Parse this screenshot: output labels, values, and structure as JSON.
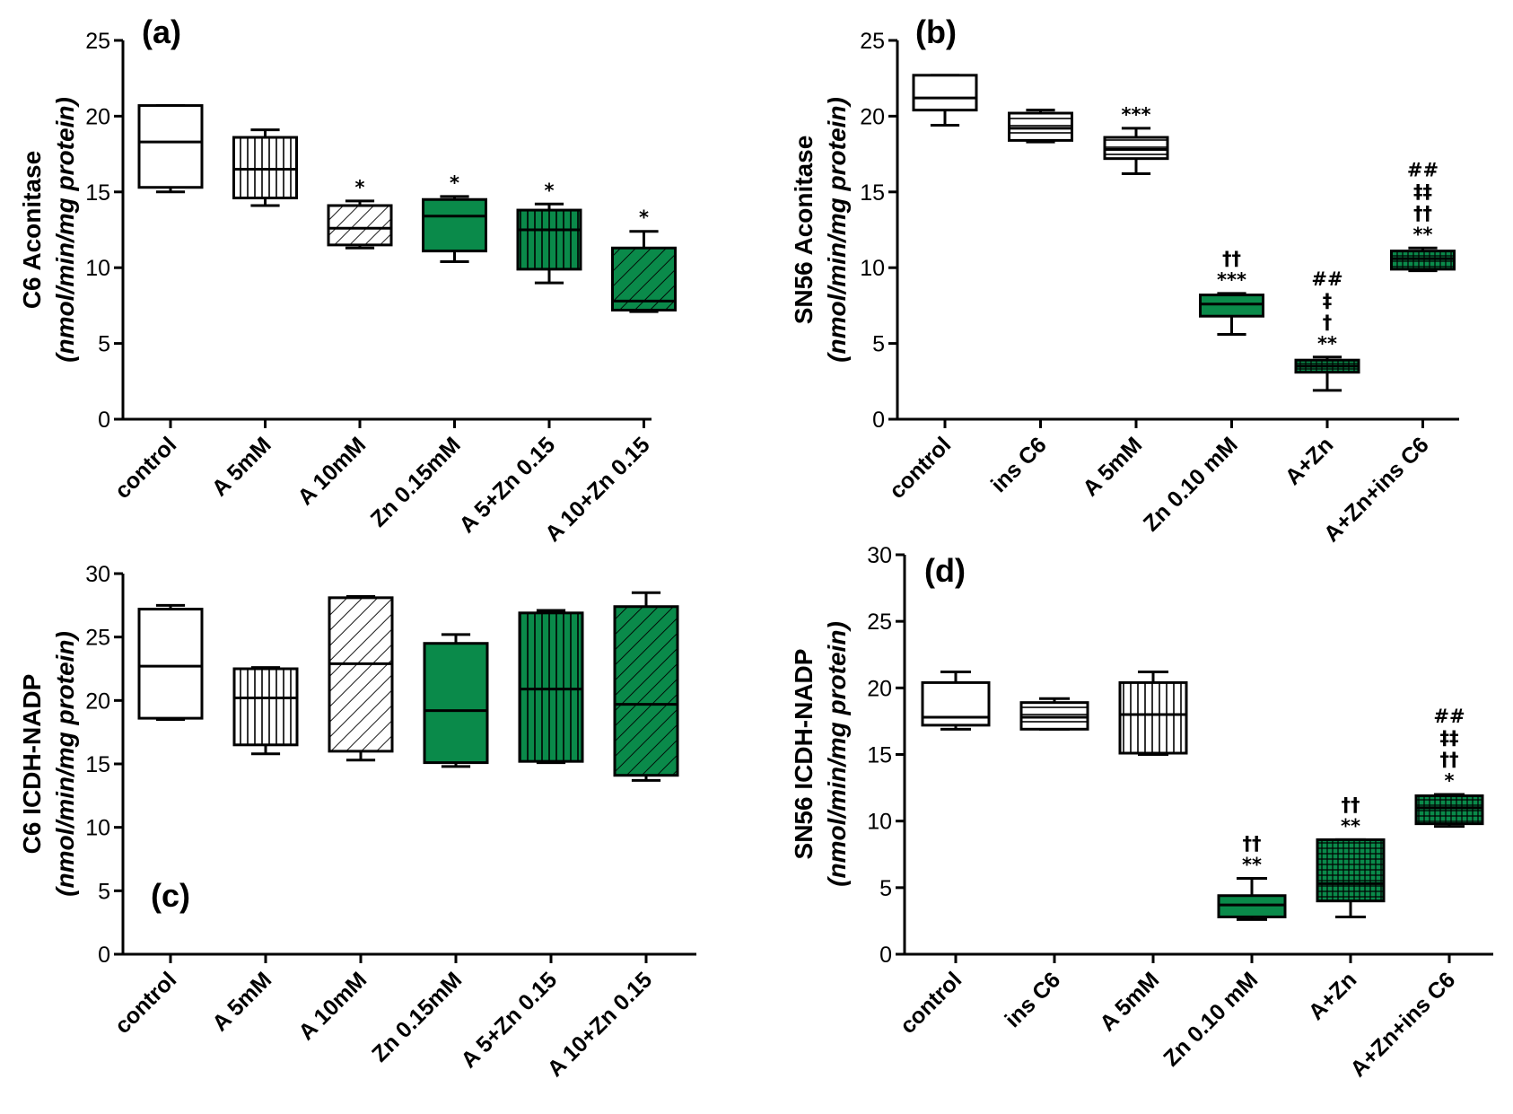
{
  "colors": {
    "green": "#0a8a4a",
    "white": "#ffffff",
    "ink": "#000000"
  },
  "chart_data": [
    {
      "panel": "(a)",
      "type": "box",
      "ylabel": "C6 Aconitase",
      "ylabel_unit": "(nmol/min/mg protein)",
      "ylim": [
        0,
        25
      ],
      "yticks": [
        0,
        5,
        10,
        15,
        20,
        25
      ],
      "categories": [
        "control",
        "A 5mM",
        "A 10mM",
        "Zn 0.15mM",
        "A 5+Zn 0.15",
        "A 10+Zn 0.15"
      ],
      "fill": [
        "white",
        "white",
        "white",
        "green",
        "green",
        "green"
      ],
      "pattern": [
        "none",
        "vertical",
        "diagonal",
        "none",
        "vertical",
        "diagonal"
      ],
      "min": [
        15.0,
        14.1,
        11.3,
        10.4,
        9.0,
        7.1
      ],
      "q1": [
        15.3,
        14.6,
        11.5,
        11.1,
        9.9,
        7.2
      ],
      "median": [
        18.3,
        16.5,
        12.6,
        13.4,
        12.5,
        7.8
      ],
      "q3": [
        20.7,
        18.6,
        14.1,
        14.5,
        13.8,
        11.3
      ],
      "max": [
        20.7,
        19.1,
        14.4,
        14.7,
        14.2,
        12.4
      ],
      "annotations": [
        [],
        [],
        [
          "*"
        ],
        [
          "*"
        ],
        [
          "*"
        ],
        [
          "*"
        ]
      ]
    },
    {
      "panel": "(b)",
      "type": "box",
      "ylabel": "SN56 Aconitase",
      "ylabel_unit": "(nmol/min/mg protein)",
      "ylim": [
        0,
        25
      ],
      "yticks": [
        0,
        5,
        10,
        15,
        20,
        25
      ],
      "categories": [
        "control",
        "ins C6",
        "A 5mM",
        "Zn 0.10 mM",
        "A+Zn",
        "A+Zn+ins C6"
      ],
      "fill": [
        "white",
        "white",
        "white",
        "green",
        "green",
        "green"
      ],
      "pattern": [
        "none",
        "horizontal",
        "horizontal",
        "none",
        "grid",
        "grid"
      ],
      "min": [
        19.4,
        18.3,
        16.2,
        5.6,
        1.9,
        9.8
      ],
      "q1": [
        20.4,
        18.4,
        17.2,
        6.8,
        3.1,
        9.9
      ],
      "median": [
        21.2,
        19.2,
        17.8,
        7.6,
        3.5,
        10.6
      ],
      "q3": [
        22.7,
        20.2,
        18.6,
        8.2,
        3.9,
        11.1
      ],
      "max": [
        22.7,
        20.4,
        19.2,
        8.3,
        4.1,
        11.3
      ],
      "annotations": [
        [],
        [],
        [
          "***"
        ],
        [
          "***",
          "††"
        ],
        [
          "**",
          "†",
          "‡",
          "##"
        ],
        [
          "**",
          "††",
          "‡‡",
          "##"
        ]
      ]
    },
    {
      "panel": "(c)",
      "type": "box",
      "ylabel": "C6 ICDH-NADP",
      "ylabel_unit": "(nmol/min/mg protein)",
      "ylim": [
        0,
        30
      ],
      "yticks": [
        0,
        5,
        10,
        15,
        20,
        25,
        30
      ],
      "categories": [
        "control",
        "A 5mM",
        "A 10mM",
        "Zn 0.15mM",
        "A 5+Zn 0.15",
        "A 10+Zn 0.15"
      ],
      "fill": [
        "white",
        "white",
        "white",
        "green",
        "green",
        "green"
      ],
      "pattern": [
        "none",
        "vertical",
        "diagonal",
        "none",
        "vertical",
        "diagonal"
      ],
      "min": [
        18.5,
        15.8,
        15.3,
        14.8,
        15.1,
        13.7
      ],
      "q1": [
        18.6,
        16.5,
        16.0,
        15.1,
        15.2,
        14.1
      ],
      "median": [
        22.7,
        20.2,
        22.9,
        19.2,
        20.9,
        19.7
      ],
      "q3": [
        27.2,
        22.5,
        28.1,
        24.5,
        26.9,
        27.4
      ],
      "max": [
        27.5,
        22.6,
        28.2,
        25.2,
        27.1,
        28.5
      ],
      "annotations": [
        [],
        [],
        [],
        [],
        [],
        []
      ]
    },
    {
      "panel": "(d)",
      "type": "box",
      "ylabel": "SN56 ICDH-NADP",
      "ylabel_unit": "(nmol/min/mg protein)",
      "ylim": [
        0,
        30
      ],
      "yticks": [
        0,
        5,
        10,
        15,
        20,
        25,
        30
      ],
      "categories": [
        "control",
        "ins C6",
        "A 5mM",
        "Zn 0.10 mM",
        "A+Zn",
        "A+Zn+ins C6"
      ],
      "fill": [
        "white",
        "white",
        "white",
        "green",
        "green",
        "green"
      ],
      "pattern": [
        "none",
        "horizontal",
        "vertical",
        "none",
        "grid",
        "grid"
      ],
      "min": [
        16.9,
        16.9,
        15.0,
        2.6,
        2.8,
        9.6
      ],
      "q1": [
        17.2,
        16.9,
        15.1,
        2.8,
        4.0,
        9.8
      ],
      "median": [
        17.8,
        17.8,
        18.0,
        3.7,
        5.3,
        11.0
      ],
      "q3": [
        20.4,
        18.9,
        20.4,
        4.4,
        8.6,
        11.9
      ],
      "max": [
        21.2,
        19.2,
        21.2,
        5.7,
        8.6,
        12.0
      ],
      "annotations": [
        [],
        [],
        [],
        [
          "**",
          "††"
        ],
        [
          "**",
          "††"
        ],
        [
          "*",
          "††",
          "‡‡",
          "##"
        ]
      ]
    }
  ]
}
